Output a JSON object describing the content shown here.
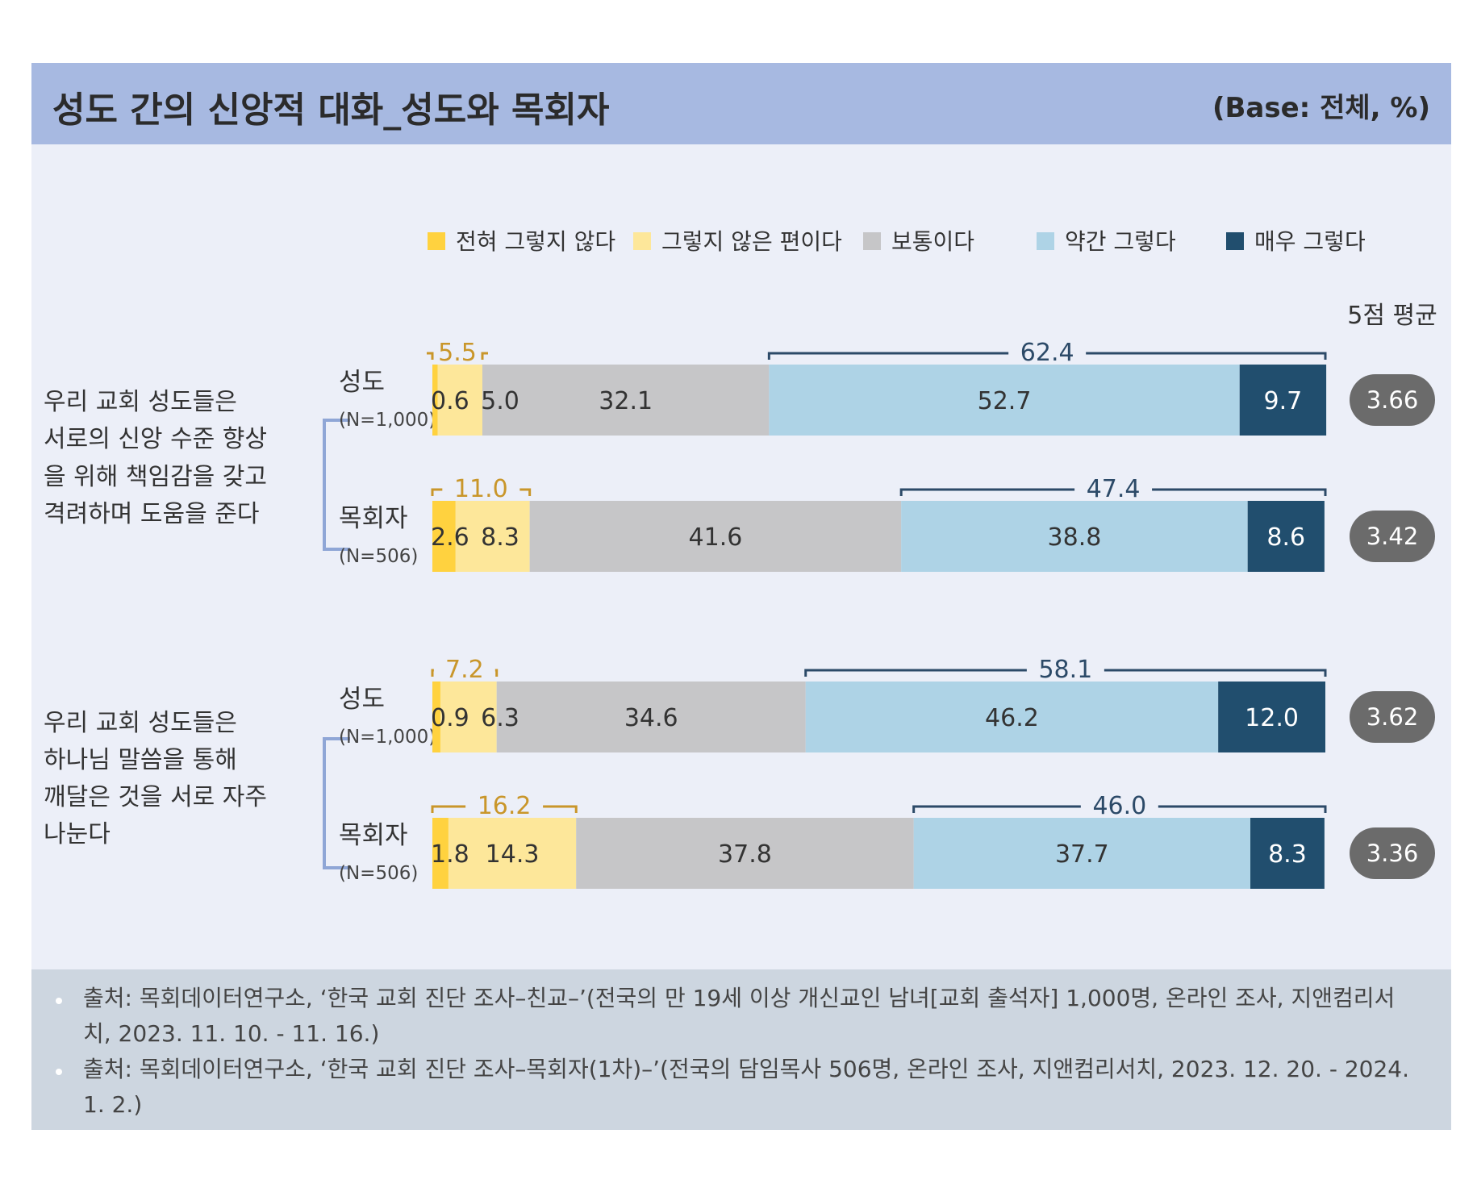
{
  "header": {
    "title": "성도 간의 신앙적 대화_성도와 목회자",
    "base": "(Base: 전체, %)"
  },
  "footer": {
    "notes": [
      "출처: 목회데이터연구소, ‘한국 교회 진단 조사–친교–’(전국의 만 19세 이상 개신교인 남녀[교회 출석자] 1,000명, 온라인 조사, 지앤컴리서치, 2023. 11. 10. - 11. 16.)",
      "출처: 목회데이터연구소, ‘한국 교회 진단 조사–목회자(1차)–’(전국의 담임목사 506명, 온라인 조사, 지앤컴리서치, 2023. 12. 20. - 2024. 1. 2.)"
    ]
  },
  "colors": {
    "header_bg": "#a7b9e1",
    "panel_bg": "#eceff8",
    "footer_bg": "#cdd6e0",
    "neg_bracket": "#c9962a",
    "pos_bracket": "#2c4a68",
    "avg_badge": "#6b6b6b"
  },
  "chart_data": {
    "type": "bar",
    "orientation": "horizontal-stacked-100",
    "xlim": [
      0,
      100
    ],
    "legend": {
      "position": "top",
      "items": [
        {
          "name": "전혀 그렇지 않다",
          "color": "#ffd23f"
        },
        {
          "name": "그렇지 않은 편이다",
          "color": "#fde79a"
        },
        {
          "name": "보통이다",
          "color": "#c6c6c8"
        },
        {
          "name": "약간 그렇다",
          "color": "#aed3e6"
        },
        {
          "name": "매우 그렇다",
          "color": "#214e6e"
        }
      ]
    },
    "avg_header": "5점 평균",
    "groups": [
      {
        "question": [
          "우리 교회 성도들은",
          "서로의 신앙 수준 향상",
          "을 위해 책임감을 갖고",
          "격려하며 도움을 준다"
        ],
        "rows": [
          {
            "label": "성도",
            "n": "(N=1,000)",
            "values": [
              0.6,
              5.0,
              32.1,
              52.7,
              9.7
            ],
            "labels": [
              "0.6",
              "5.0",
              "32.1",
              "52.7",
              "9.7"
            ],
            "neg_total": "5.5",
            "pos_total": "62.4",
            "avg": "3.66"
          },
          {
            "label": "목회자",
            "n": "(N=506)",
            "values": [
              2.6,
              8.3,
              41.6,
              38.8,
              8.6
            ],
            "labels": [
              "2.6",
              "8.3",
              "41.6",
              "38.8",
              "8.6"
            ],
            "neg_total": "11.0",
            "pos_total": "47.4",
            "avg": "3.42"
          }
        ]
      },
      {
        "question": [
          "우리 교회 성도들은",
          "하나님 말씀을 통해",
          "깨달은 것을 서로 자주",
          "나눈다"
        ],
        "rows": [
          {
            "label": "성도",
            "n": "(N=1,000)",
            "values": [
              0.9,
              6.3,
              34.6,
              46.2,
              12.0
            ],
            "labels": [
              "0.9",
              "6.3",
              "34.6",
              "46.2",
              "12.0"
            ],
            "neg_total": "7.2",
            "pos_total": "58.1",
            "avg": "3.62"
          },
          {
            "label": "목회자",
            "n": "(N=506)",
            "values": [
              1.8,
              14.3,
              37.8,
              37.7,
              8.3
            ],
            "labels": [
              "1.8",
              "14.3",
              "37.8",
              "37.7",
              "8.3"
            ],
            "neg_total": "16.2",
            "pos_total": "46.0",
            "avg": "3.36"
          }
        ]
      }
    ]
  }
}
